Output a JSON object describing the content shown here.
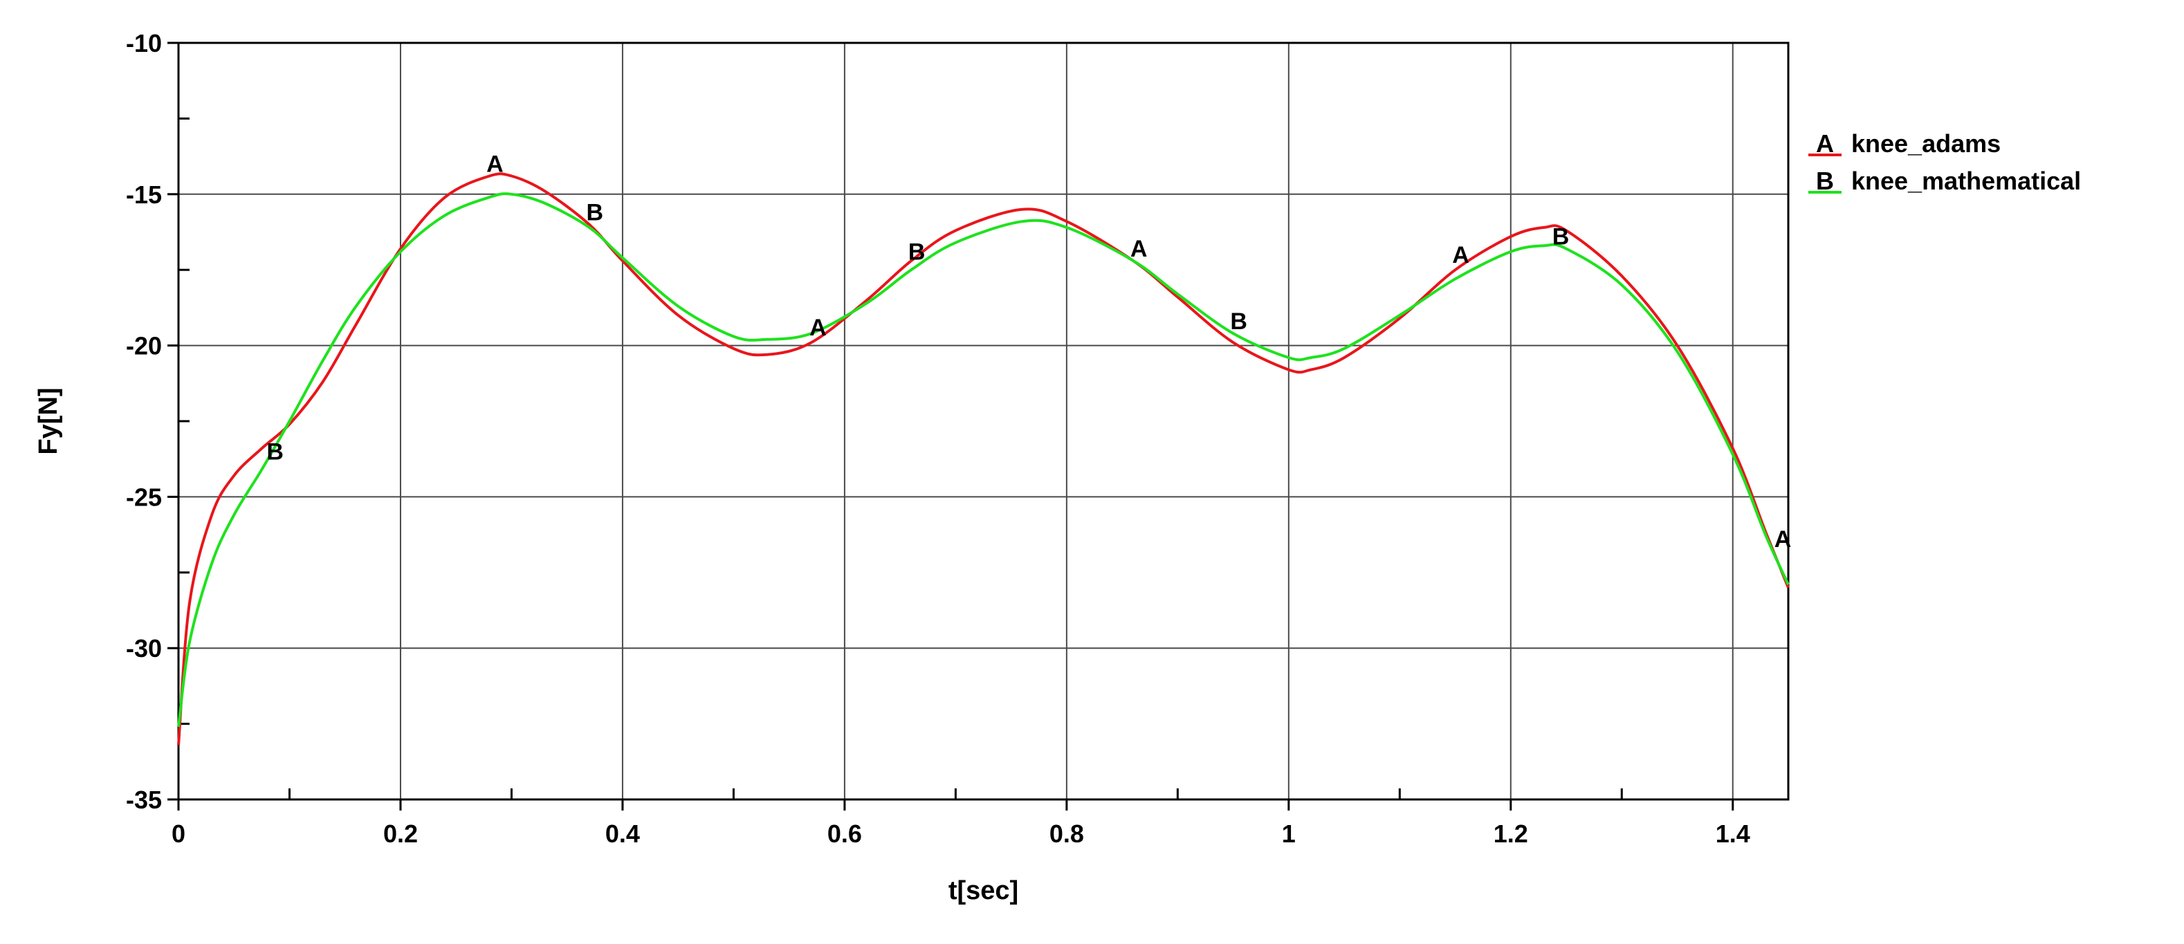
{
  "chart_data": {
    "type": "line",
    "title": "",
    "xlabel": "t[sec]",
    "ylabel": "Fy[N]",
    "xlim": [
      0,
      1.45
    ],
    "ylim": [
      -35,
      -10
    ],
    "x_ticks": [
      0,
      0.2,
      0.4,
      0.6,
      0.8,
      1,
      1.2,
      1.4
    ],
    "x_tick_labels": [
      "0",
      "0.2",
      "0.4",
      "0.6",
      "0.8",
      "1",
      "1.2",
      "1.4"
    ],
    "y_ticks": [
      -35,
      -30,
      -25,
      -20,
      -15,
      -10
    ],
    "y_tick_labels": [
      "-35",
      "-30",
      "-25",
      "-20",
      "-15",
      "-10"
    ],
    "x_minor_step": 0.1,
    "y_minor_step": 2.5,
    "grid": true,
    "legend_position": "right",
    "series": [
      {
        "name": "knee_adams",
        "marker": "A",
        "color": "#e8161b",
        "x": [
          0,
          0.01,
          0.03,
          0.05,
          0.075,
          0.1,
          0.13,
          0.16,
          0.2,
          0.24,
          0.28,
          0.3,
          0.33,
          0.37,
          0.4,
          0.45,
          0.5,
          0.53,
          0.57,
          0.62,
          0.66,
          0.7,
          0.76,
          0.8,
          0.86,
          0.9,
          0.95,
          1.0,
          1.02,
          1.05,
          1.1,
          1.15,
          1.2,
          1.23,
          1.25,
          1.3,
          1.35,
          1.4,
          1.43,
          1.45
        ],
        "y": [
          -33.2,
          -28.5,
          -25.6,
          -24.3,
          -23.4,
          -22.6,
          -21.2,
          -19.3,
          -16.8,
          -15.1,
          -14.4,
          -14.4,
          -14.9,
          -16.0,
          -17.2,
          -19.0,
          -20.1,
          -20.3,
          -19.9,
          -18.5,
          -17.2,
          -16.2,
          -15.5,
          -15.9,
          -17.2,
          -18.4,
          -19.9,
          -20.8,
          -20.8,
          -20.4,
          -19.1,
          -17.5,
          -16.4,
          -16.1,
          -16.2,
          -17.7,
          -20.0,
          -23.4,
          -26.2,
          -28.0
        ]
      },
      {
        "name": "knee_mathematical",
        "marker": "B",
        "color": "#1ee21e",
        "x": [
          0,
          0.01,
          0.03,
          0.05,
          0.075,
          0.1,
          0.13,
          0.16,
          0.2,
          0.24,
          0.28,
          0.3,
          0.33,
          0.37,
          0.4,
          0.45,
          0.5,
          0.53,
          0.57,
          0.62,
          0.66,
          0.7,
          0.76,
          0.8,
          0.86,
          0.9,
          0.95,
          1.0,
          1.02,
          1.05,
          1.1,
          1.15,
          1.2,
          1.23,
          1.25,
          1.3,
          1.35,
          1.4,
          1.43,
          1.45
        ],
        "y": [
          -32.6,
          -29.8,
          -27.2,
          -25.6,
          -24.1,
          -22.5,
          -20.5,
          -18.7,
          -16.9,
          -15.7,
          -15.1,
          -15.0,
          -15.3,
          -16.1,
          -17.1,
          -18.7,
          -19.7,
          -19.8,
          -19.6,
          -18.6,
          -17.5,
          -16.6,
          -15.9,
          -16.1,
          -17.2,
          -18.3,
          -19.6,
          -20.4,
          -20.4,
          -20.1,
          -19.0,
          -17.8,
          -16.9,
          -16.7,
          -16.8,
          -18.0,
          -20.2,
          -23.6,
          -26.3,
          -27.9
        ]
      }
    ],
    "curve_markers": [
      {
        "label": "A",
        "x": 0.285,
        "y": -14.4,
        "series": 0
      },
      {
        "label": "B",
        "x": 0.375,
        "y": -16.0,
        "series": 1
      },
      {
        "label": "B",
        "x": 0.087,
        "y": -23.9,
        "series": 1
      },
      {
        "label": "A",
        "x": 0.576,
        "y": -19.8,
        "series": 0
      },
      {
        "label": "B",
        "x": 0.665,
        "y": -17.3,
        "series": 1
      },
      {
        "label": "A",
        "x": 0.865,
        "y": -17.2,
        "series": 0
      },
      {
        "label": "B",
        "x": 0.955,
        "y": -19.6,
        "series": 1
      },
      {
        "label": "A",
        "x": 1.155,
        "y": -17.4,
        "series": 0
      },
      {
        "label": "B",
        "x": 1.245,
        "y": -16.8,
        "series": 1
      },
      {
        "label": "A",
        "x": 1.445,
        "y": -26.8,
        "series": 0
      }
    ]
  }
}
